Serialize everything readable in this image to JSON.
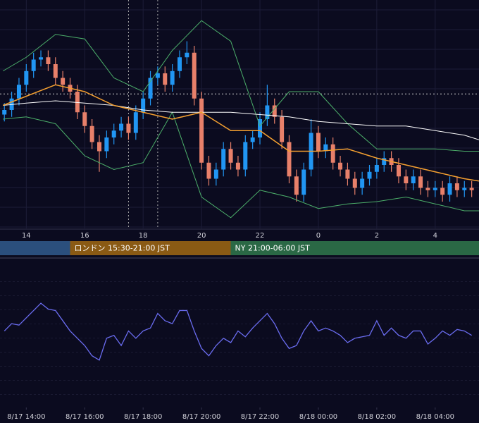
{
  "chart_data": [
    {
      "type": "candlestick",
      "xlim": [
        13.1,
        29.5
      ],
      "ylim": [
        0,
        100
      ],
      "xticks": [
        14,
        16,
        18,
        20,
        22,
        {
          "value": 24,
          "label": "0"
        },
        {
          "value": 26,
          "label": "2"
        },
        {
          "value": 28,
          "label": "4"
        }
      ],
      "up_color": "#2196f3",
      "down_color": "#e8806a",
      "x": [
        13.25,
        13.5,
        13.75,
        14,
        14.25,
        14.5,
        14.75,
        15,
        15.25,
        15.5,
        15.75,
        16,
        16.25,
        16.5,
        16.75,
        17,
        17.25,
        17.5,
        17.75,
        18,
        18.25,
        18.5,
        18.75,
        19,
        19.25,
        19.5,
        19.75,
        20,
        20.25,
        20.5,
        20.75,
        21,
        21.25,
        21.5,
        21.75,
        22,
        22.25,
        22.5,
        22.75,
        23,
        23.25,
        23.5,
        23.75,
        24,
        24.25,
        24.5,
        24.75,
        25,
        25.25,
        25.5,
        25.75,
        26,
        26.25,
        26.5,
        26.75,
        27,
        27.25,
        27.5,
        27.75,
        28,
        28.25,
        28.5,
        28.75,
        29,
        29.25
      ],
      "open": [
        50,
        52,
        57,
        63,
        69,
        74,
        75,
        72,
        66,
        63,
        60,
        51,
        45,
        38,
        34,
        40,
        43,
        46,
        42,
        51,
        57,
        66,
        68,
        63,
        69,
        75,
        77,
        57,
        29,
        22,
        26,
        35,
        29,
        26,
        38,
        40,
        48,
        54,
        49,
        38,
        23,
        15,
        26,
        42,
        34,
        37,
        29,
        26,
        22,
        18,
        22,
        25,
        28,
        31,
        28,
        23,
        20,
        23,
        18,
        17,
        18,
        15,
        20,
        17,
        18
      ],
      "high": [
        55,
        60,
        66,
        72,
        77,
        78,
        78,
        75,
        69,
        66,
        63,
        54,
        48,
        41,
        43,
        46,
        49,
        49,
        54,
        60,
        69,
        71,
        71,
        72,
        78,
        82,
        80,
        60,
        32,
        29,
        38,
        38,
        32,
        41,
        43,
        51,
        63,
        57,
        52,
        41,
        26,
        29,
        48,
        45,
        40,
        40,
        32,
        29,
        25,
        25,
        28,
        31,
        34,
        34,
        31,
        26,
        26,
        26,
        21,
        21,
        21,
        23,
        23,
        21,
        21
      ],
      "low": [
        47,
        49,
        54,
        60,
        66,
        71,
        69,
        63,
        60,
        57,
        48,
        42,
        35,
        25,
        31,
        37,
        40,
        39,
        39,
        48,
        54,
        63,
        60,
        60,
        66,
        72,
        54,
        26,
        19,
        19,
        23,
        26,
        23,
        23,
        35,
        37,
        45,
        46,
        35,
        20,
        12,
        12,
        23,
        31,
        31,
        26,
        23,
        19,
        15,
        15,
        19,
        22,
        25,
        25,
        20,
        17,
        17,
        15,
        14,
        14,
        12,
        12,
        14,
        14,
        14
      ],
      "close": [
        52,
        57,
        63,
        69,
        74,
        75,
        72,
        66,
        63,
        60,
        51,
        45,
        38,
        34,
        40,
        43,
        46,
        42,
        51,
        57,
        66,
        68,
        63,
        69,
        75,
        77,
        57,
        29,
        22,
        26,
        35,
        29,
        26,
        38,
        40,
        48,
        54,
        49,
        38,
        23,
        15,
        26,
        42,
        34,
        37,
        29,
        26,
        22,
        18,
        22,
        25,
        28,
        31,
        28,
        23,
        20,
        23,
        18,
        17,
        18,
        15,
        20,
        17,
        18,
        17
      ],
      "overlay_x": [
        13.2,
        14,
        15,
        16,
        17,
        18,
        19,
        20,
        21,
        22,
        23,
        24,
        25,
        26,
        27,
        28,
        29,
        29.5
      ],
      "overlays": [
        {
          "color": "#4caf6a",
          "values": [
            69,
            75,
            85,
            83,
            66,
            60,
            78,
            91,
            82,
            45,
            60,
            60,
            46,
            35,
            35,
            35,
            34,
            34
          ]
        },
        {
          "color": "#4caf6a",
          "values": [
            48,
            49,
            46,
            32,
            26,
            29,
            51,
            14,
            5,
            17,
            14,
            9,
            11,
            12,
            14,
            11,
            8,
            8
          ]
        },
        {
          "color": "#ffffff",
          "values": [
            54,
            55,
            56,
            55,
            54,
            52,
            51,
            51,
            51,
            50,
            49,
            47,
            46,
            45,
            45,
            43,
            41,
            39
          ]
        },
        {
          "color": "#f5a030",
          "values": [
            54,
            58,
            63,
            60,
            54,
            51,
            48,
            51,
            43,
            43,
            34,
            34,
            35,
            31,
            28,
            25,
            22,
            21
          ]
        }
      ],
      "hline": 59,
      "vlines": [
        17.5,
        18.5
      ],
      "sessions": [
        {
          "label": "ロンドン 15:30-21:00 JST",
          "start": 15.5,
          "end": 21,
          "color": "#8a5a14"
        },
        {
          "label": "NY 21:00-06:00 JST",
          "start": 21,
          "end": 30,
          "color": "#2a6845"
        }
      ]
    },
    {
      "type": "line",
      "xlim": [
        13.1,
        29.5
      ],
      "ylim": [
        0,
        100
      ],
      "xticks": [
        {
          "value": 14,
          "label": "8/17 14:00"
        },
        {
          "value": 16,
          "label": "8/17 16:00"
        },
        {
          "value": 18,
          "label": "8/17 18:00"
        },
        {
          "value": 20,
          "label": "8/17 20:00"
        },
        {
          "value": 22,
          "label": "8/17 22:00"
        },
        {
          "value": 24,
          "label": "8/18 00:00"
        },
        {
          "value": 26,
          "label": "8/18 02:00"
        },
        {
          "value": 28,
          "label": "8/18 04:00"
        }
      ],
      "color": "#6a6cf0",
      "x": [
        13.25,
        13.5,
        13.75,
        14,
        14.25,
        14.5,
        14.75,
        15,
        15.25,
        15.5,
        15.75,
        16,
        16.25,
        16.5,
        16.75,
        17,
        17.25,
        17.5,
        17.75,
        18,
        18.25,
        18.5,
        18.75,
        19,
        19.25,
        19.5,
        19.75,
        20,
        20.25,
        20.5,
        20.75,
        21,
        21.25,
        21.5,
        21.75,
        22,
        22.25,
        22.5,
        22.75,
        23,
        23.25,
        23.5,
        23.75,
        24,
        24.25,
        24.5,
        24.75,
        25,
        25.25,
        25.5,
        25.75,
        26,
        26.25,
        26.5,
        26.75,
        27,
        27.25,
        27.5,
        27.75,
        28,
        28.25,
        28.5,
        28.75,
        29,
        29.25
      ],
      "values": [
        51,
        56,
        55,
        60,
        65,
        70,
        66,
        65,
        58,
        51,
        46,
        41,
        34,
        31,
        46,
        48,
        41,
        51,
        46,
        51,
        53,
        63,
        58,
        56,
        65,
        65,
        51,
        39,
        34,
        41,
        46,
        43,
        51,
        47,
        53,
        58,
        63,
        56,
        46,
        39,
        41,
        51,
        58,
        51,
        53,
        51,
        48,
        43,
        46,
        47,
        48,
        58,
        48,
        53,
        48,
        46,
        51,
        51,
        42,
        46,
        51,
        48,
        52,
        51,
        48
      ]
    }
  ]
}
